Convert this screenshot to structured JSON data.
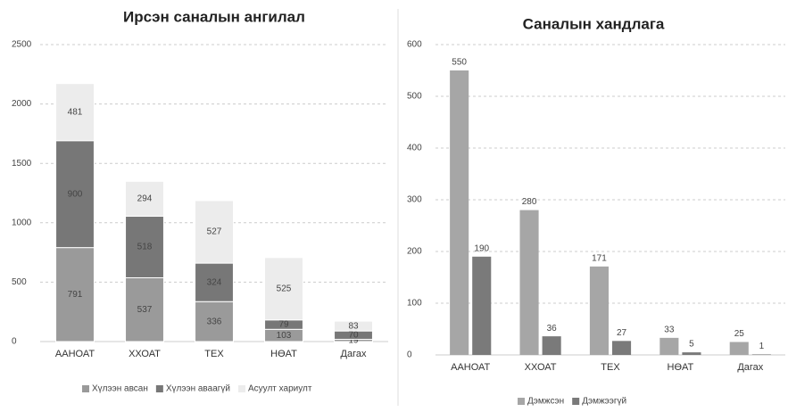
{
  "chart_data": [
    {
      "type": "stacked-bar",
      "title": "Ирсэн саналын ангилал",
      "categories": [
        "ААНОАТ",
        "ХХОАТ",
        "ТЕХ",
        "НӨАТ",
        "Дагах"
      ],
      "series": [
        {
          "name": "Хүлээн авсан",
          "color": "#9a9a9a",
          "values": [
            791,
            537,
            336,
            103,
            19
          ]
        },
        {
          "name": "Хүлээн аваагүй",
          "color": "#777777",
          "values": [
            900,
            518,
            324,
            79,
            70
          ]
        },
        {
          "name": "Асуулт хариулт",
          "color": "#ececec",
          "values": [
            481,
            294,
            527,
            525,
            83
          ]
        }
      ],
      "ylim": [
        0,
        2500
      ],
      "yticks": [
        0,
        500,
        1000,
        1500,
        2000,
        2500
      ],
      "grid": true
    },
    {
      "type": "grouped-bar",
      "title": "Саналын хандлага",
      "categories": [
        "ААНОАТ",
        "ХХОАТ",
        "ТЕХ",
        "НӨАТ",
        "Дагах"
      ],
      "series": [
        {
          "name": "Дэмжсэн",
          "color": "#a6a6a6",
          "values": [
            550,
            280,
            171,
            33,
            25
          ]
        },
        {
          "name": "Дэмжээгүй",
          "color": "#7a7a7a",
          "values": [
            190,
            36,
            27,
            5,
            1
          ]
        }
      ],
      "ylim": [
        0,
        600
      ],
      "yticks": [
        0,
        100,
        200,
        300,
        400,
        500,
        600
      ],
      "grid": true
    }
  ]
}
